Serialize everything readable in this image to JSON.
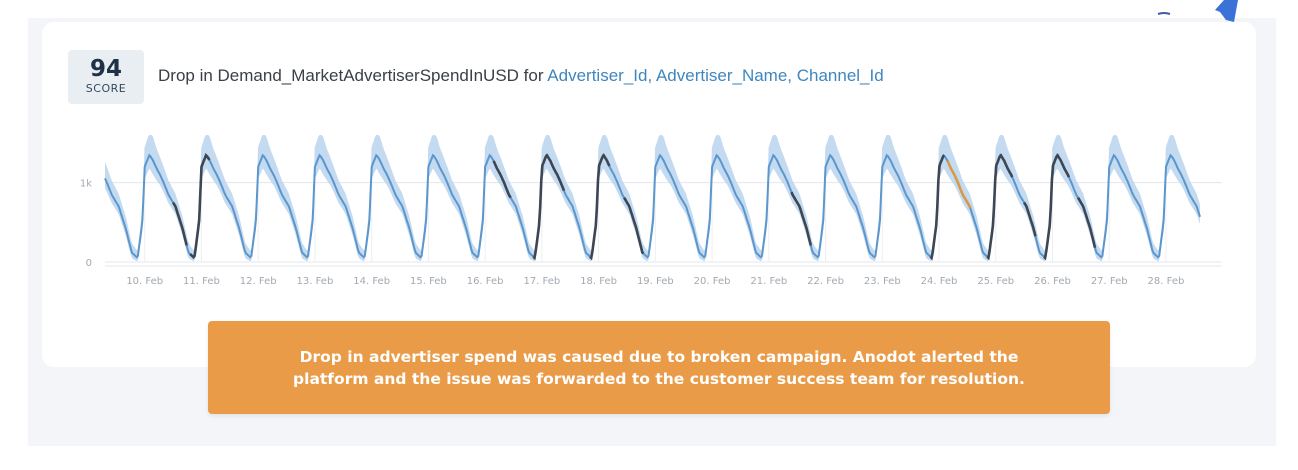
{
  "card": {
    "score_value": "94",
    "score_label": "SCORE",
    "title_prefix": "Drop in Demand_MarketAdvertiserSpendInUSD for ",
    "title_dimensions": "Advertiser_Id, Advertiser_Name, Channel_Id"
  },
  "chart_data": {
    "type": "line",
    "yticks": [
      "0",
      "1k"
    ],
    "y_tick_values": [
      0,
      1000
    ],
    "ylim": [
      0,
      1600
    ],
    "xticks": [
      "10. Feb",
      "11. Feb",
      "12. Feb",
      "13. Feb",
      "14. Feb",
      "15. Feb",
      "16. Feb",
      "17. Feb",
      "18. Feb",
      "19. Feb",
      "20. Feb",
      "21. Feb",
      "22. Feb",
      "23. Feb",
      "24. Feb",
      "25. Feb",
      "26. Feb",
      "27. Feb",
      "28. Feb"
    ],
    "x_start_day": 9.3,
    "x_end_day": 28.6,
    "grid": true,
    "colors": {
      "line": "#5b96cc",
      "band": "#b9d4ee",
      "anomaly": "#3d4652",
      "highlight": "#d99a45"
    },
    "daily_profile": {
      "hours": [
        0,
        2,
        3.5,
        5,
        6.5,
        8,
        10,
        13,
        16,
        18.5,
        21,
        23,
        24
      ],
      "values": [
        1200,
        1350,
        1280,
        1180,
        1100,
        1000,
        850,
        700,
        420,
        120,
        50,
        500,
        1200
      ]
    },
    "band_width": [
      250,
      280,
      300,
      250,
      220,
      200,
      180,
      160,
      150,
      120,
      80,
      180,
      250
    ],
    "anomaly_segments": [
      [
        10.5,
        10.75
      ],
      [
        10.8,
        11.15
      ],
      [
        16.15,
        16.45
      ],
      [
        16.85,
        17.4
      ],
      [
        17.85,
        18.2
      ],
      [
        18.45,
        18.8
      ],
      [
        21.4,
        21.75
      ],
      [
        23.85,
        24.1
      ],
      [
        24.85,
        25.3
      ],
      [
        25.5,
        25.7
      ],
      [
        25.85,
        26.3
      ],
      [
        26.45,
        26.75
      ]
    ],
    "highlight_segment": [
      24.15,
      24.55
    ]
  },
  "callout": {
    "line1": "Drop in advertiser spend was caused due to broken campaign. Anodot alerted the",
    "line2": "platform and the issue was forwarded to the customer success team for resolution."
  }
}
